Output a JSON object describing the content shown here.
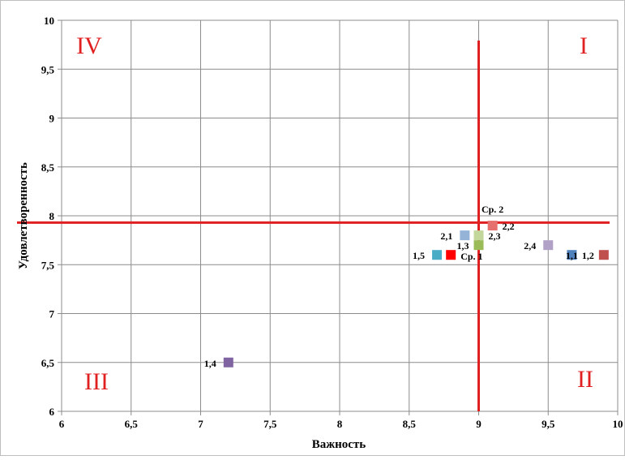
{
  "chart_data": {
    "type": "scatter",
    "title": "",
    "xlabel": "Важность",
    "ylabel": "Удовлетворенность",
    "xlim": [
      6,
      10
    ],
    "ylim": [
      6,
      10
    ],
    "x_ticks": [
      "6",
      "6,5",
      "7",
      "7,5",
      "8",
      "8,5",
      "9",
      "9,5",
      "10"
    ],
    "y_ticks": [
      "6",
      "6,5",
      "7",
      "7,5",
      "8",
      "8,5",
      "9",
      "9,5",
      "10"
    ],
    "grid": true,
    "legend": "none",
    "quadrant_labels": [
      {
        "text": "IV",
        "quadrant": "top-left"
      },
      {
        "text": "I",
        "quadrant": "top-right"
      },
      {
        "text": "III",
        "quadrant": "bottom-left"
      },
      {
        "text": "II",
        "quadrant": "bottom-right"
      }
    ],
    "reference_lines": {
      "vertical_x": 9.0,
      "horizontal_y": 7.93,
      "color": "#e02020"
    },
    "points": [
      {
        "label": "1,1",
        "x": 9.67,
        "y": 7.6,
        "color": "#4f81bd"
      },
      {
        "label": "1,2",
        "x": 9.9,
        "y": 7.6,
        "color": "#c0504d"
      },
      {
        "label": "1,3",
        "x": 9.0,
        "y": 7.7,
        "color": "#9bbb59"
      },
      {
        "label": "1,4",
        "x": 7.2,
        "y": 6.5,
        "color": "#8064a2"
      },
      {
        "label": "1,5",
        "x": 8.7,
        "y": 7.6,
        "color": "#4bacc6"
      },
      {
        "label": "Ср. 1",
        "x": 8.8,
        "y": 7.6,
        "color": "#ff0000"
      },
      {
        "label": "2,1",
        "x": 8.9,
        "y": 7.8,
        "color": "#95b3d7"
      },
      {
        "label": "2,2",
        "x": 9.1,
        "y": 7.9,
        "color": "#e6706e"
      },
      {
        "label": "2,3",
        "x": 9.0,
        "y": 7.8,
        "color": "#c3d69b"
      },
      {
        "label": "2,4",
        "x": 9.5,
        "y": 7.7,
        "color": "#b2a1c7"
      },
      {
        "label": "Ср. 2",
        "x": 9.1,
        "y": 7.9,
        "color": "#f08080"
      }
    ]
  }
}
